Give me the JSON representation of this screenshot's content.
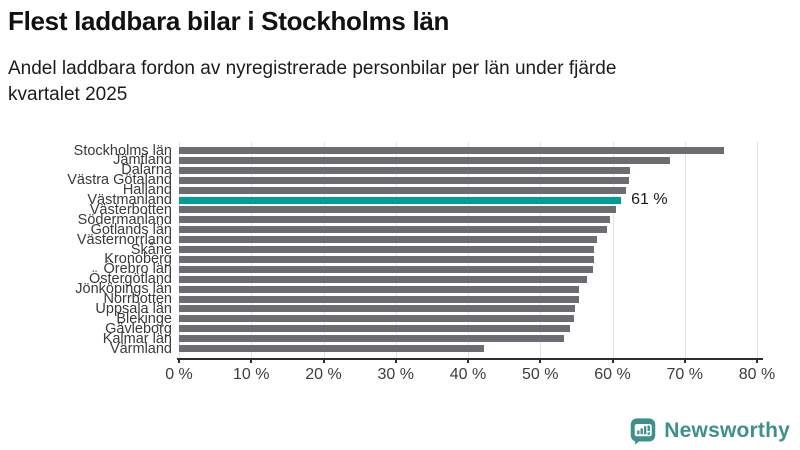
{
  "header": {
    "title": "Flest laddbara bilar i Stockholms län",
    "subtitle": "Andel laddbara fordon av nyregistrerade personbilar per län under fjärde kvartalet 2025",
    "subtitle_lines": [
      "Andel laddbara fordon av nyregistrerade personbilar per län under fjärde",
      "kvartalet 2025"
    ]
  },
  "chart_data": {
    "type": "bar",
    "orientation": "horizontal",
    "title": "Flest laddbara bilar i Stockholms län",
    "subtitle": "Andel laddbara fordon av nyregistrerade personbilar per län under fjärde kvartalet 2025",
    "unit": "%",
    "categories": [
      "Stockholms län",
      "Jämtland",
      "Dalarna",
      "Västra Götaland",
      "Halland",
      "Västmanland",
      "Västerbotten",
      "Södermanland",
      "Gotlands län",
      "Västernorrland",
      "Skåne",
      "Kronoberg",
      "Örebro län",
      "Östergötland",
      "Jönköpings län",
      "Norrbotten",
      "Uppsala län",
      "Blekinge",
      "Gävleborg",
      "Kalmar län",
      "Värmland"
    ],
    "values": [
      75.5,
      68.0,
      62.4,
      62.3,
      61.9,
      61.2,
      60.5,
      59.7,
      59.3,
      57.8,
      57.5,
      57.4,
      57.3,
      56.5,
      55.4,
      55.3,
      54.8,
      54.7,
      54.1,
      53.3,
      42.2
    ],
    "xlim": [
      0,
      80
    ],
    "x_ticks": [
      0,
      10,
      20,
      30,
      40,
      50,
      60,
      70,
      80
    ],
    "x_tick_labels": [
      "0 %",
      "10 %",
      "20 %",
      "30 %",
      "40 %",
      "50 %",
      "60 %",
      "70 %",
      "80 %"
    ],
    "grid": true,
    "legend": "none",
    "bar_color": "#6c6c71",
    "highlight": {
      "index": 5,
      "category": "Västmanland",
      "label": "61 %",
      "color": "#009e98"
    }
  },
  "footer": {
    "brand": "Newsworthy",
    "brand_color": "#3e918b",
    "logo_icon": "bar-chart-speech-bubble-icon"
  }
}
